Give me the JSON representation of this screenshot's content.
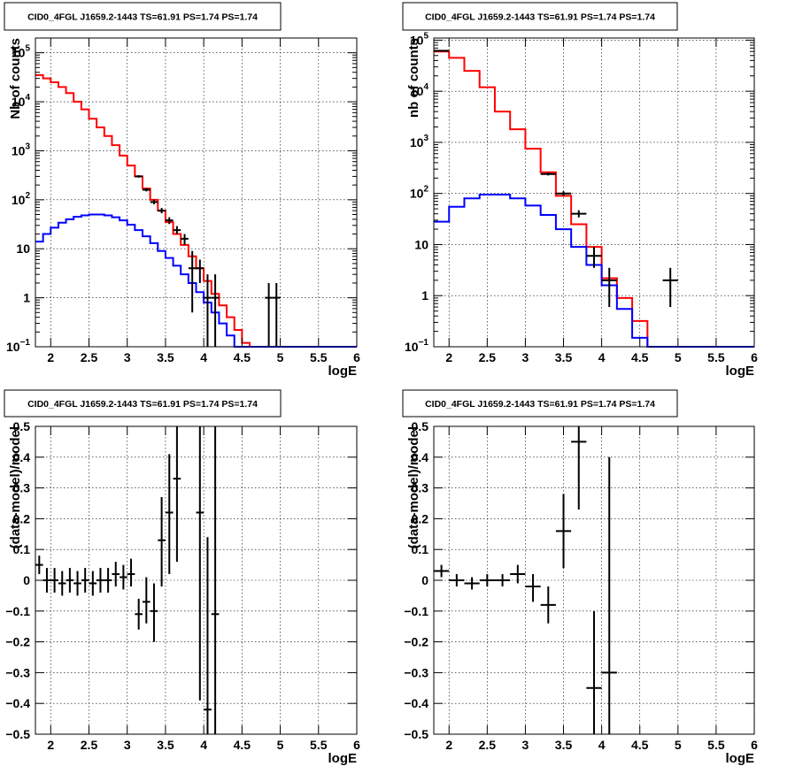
{
  "chart_data": [
    {
      "id": "p1",
      "type": "histogram",
      "title": "CID0_4FGL J1659.2-1443 TS=61.91 PS=1.74 PS=1.74",
      "xlabel": "logE",
      "ylabel": "Nb of counts",
      "xlim": [
        1.8,
        6.0
      ],
      "ylim": [
        0.1,
        200000
      ],
      "logy": true,
      "grid": true,
      "xticks": [
        2,
        2.5,
        3,
        3.5,
        4,
        4.5,
        5,
        5.5,
        6
      ],
      "yticks": [
        {
          "v": 0.1,
          "l": "10",
          "e": "−1"
        },
        {
          "v": 1,
          "l": "1",
          "e": ""
        },
        {
          "v": 10,
          "l": "10",
          "e": ""
        },
        {
          "v": 100,
          "l": "10",
          "e": "2"
        },
        {
          "v": 1000,
          "l": "10",
          "e": "3"
        },
        {
          "v": 10000,
          "l": "10",
          "e": "4"
        },
        {
          "v": 100000,
          "l": "10",
          "e": "5"
        }
      ],
      "series": [
        {
          "color": "#ff0000",
          "kind": "step",
          "edges": [
            1.8,
            1.9,
            2.0,
            2.1,
            2.2,
            2.3,
            2.4,
            2.5,
            2.6,
            2.7,
            2.8,
            2.9,
            3.0,
            3.1,
            3.2,
            3.3,
            3.4,
            3.5,
            3.6,
            3.7,
            3.8,
            3.9,
            4.0,
            4.1,
            4.2,
            4.3,
            4.4,
            4.5,
            4.6,
            4.7,
            4.8,
            4.9,
            5.0,
            5.1,
            5.2,
            5.3,
            5.4,
            5.5,
            5.6,
            5.7,
            5.8,
            5.9,
            6.0
          ],
          "values": [
            35000,
            30000,
            25000,
            20000,
            15000,
            10000,
            7000,
            4500,
            3000,
            2000,
            1300,
            800,
            500,
            300,
            170,
            100,
            60,
            35,
            20,
            12,
            7,
            4,
            2.2,
            1.2,
            0.7,
            0.4,
            0.22,
            0.12,
            0.1,
            0.1,
            0.1,
            0.1,
            0.1,
            0.1,
            0.1,
            0.1,
            0.1,
            0.1,
            0.1,
            0.1,
            0.1,
            0.1
          ]
        },
        {
          "color": "#0000ff",
          "kind": "step",
          "edges": [
            1.8,
            1.9,
            2.0,
            2.1,
            2.2,
            2.3,
            2.4,
            2.5,
            2.6,
            2.7,
            2.8,
            2.9,
            3.0,
            3.1,
            3.2,
            3.3,
            3.4,
            3.5,
            3.6,
            3.7,
            3.8,
            3.9,
            4.0,
            4.1,
            4.2,
            4.3,
            4.4,
            4.5,
            4.6,
            4.7,
            4.8,
            4.9,
            5.0,
            5.1,
            5.2,
            5.3,
            5.4,
            5.5,
            5.6,
            5.7,
            5.8,
            5.9,
            6.0
          ],
          "values": [
            14,
            20,
            27,
            34,
            40,
            45,
            48,
            50,
            50,
            48,
            44,
            38,
            31,
            24,
            18,
            13,
            9,
            6.5,
            4.5,
            3,
            2,
            1.3,
            0.8,
            0.5,
            0.3,
            0.17,
            0.1,
            0.1,
            0.1,
            0.1,
            0.1,
            0.1,
            0.1,
            0.1,
            0.1,
            0.1,
            0.1,
            0.1,
            0.1,
            0.1,
            0.1,
            0.1
          ]
        }
      ],
      "points": [
        {
          "x": 3.15,
          "y": 300,
          "lo": 283,
          "hi": 317,
          "xe": 0.05
        },
        {
          "x": 3.25,
          "y": 160,
          "lo": 148,
          "hi": 173,
          "xe": 0.05
        },
        {
          "x": 3.35,
          "y": 90,
          "lo": 81,
          "hi": 100,
          "xe": 0.05
        },
        {
          "x": 3.45,
          "y": 60,
          "lo": 53,
          "hi": 68,
          "xe": 0.05
        },
        {
          "x": 3.55,
          "y": 38,
          "lo": 32,
          "hi": 44,
          "xe": 0.05
        },
        {
          "x": 3.65,
          "y": 24,
          "lo": 20,
          "hi": 29,
          "xe": 0.05
        },
        {
          "x": 3.75,
          "y": 16,
          "lo": 12,
          "hi": 20,
          "xe": 0.05
        },
        {
          "x": 3.85,
          "y": 4,
          "lo": 0.5,
          "hi": 9,
          "xe": 0.05
        },
        {
          "x": 3.95,
          "y": 4,
          "lo": 2,
          "hi": 6,
          "xe": 0.05
        },
        {
          "x": 4.05,
          "y": 1,
          "lo": 0.1,
          "hi": 3,
          "xe": 0.05
        },
        {
          "x": 4.15,
          "y": 1,
          "lo": 0.1,
          "hi": 3,
          "xe": 0.05
        },
        {
          "x": 4.85,
          "y": 1,
          "lo": 0.1,
          "hi": 2,
          "xe": 0.05
        },
        {
          "x": 4.95,
          "y": 1,
          "lo": 0.1,
          "hi": 2,
          "xe": 0.05
        }
      ]
    },
    {
      "id": "p2",
      "type": "histogram",
      "title": "CID0_4FGL J1659.2-1443 TS=61.91 PS=1.74 PS=1.74",
      "xlabel": "logE",
      "ylabel": "nb of counts",
      "xlim": [
        1.8,
        6.0
      ],
      "ylim": [
        0.1,
        110000
      ],
      "logy": true,
      "grid": true,
      "xticks": [
        2,
        2.5,
        3,
        3.5,
        4,
        4.5,
        5,
        5.5,
        6
      ],
      "yticks": [
        {
          "v": 0.1,
          "l": "10",
          "e": "−1"
        },
        {
          "v": 1,
          "l": "1",
          "e": ""
        },
        {
          "v": 10,
          "l": "10",
          "e": ""
        },
        {
          "v": 100,
          "l": "10",
          "e": "2"
        },
        {
          "v": 1000,
          "l": "10",
          "e": "3"
        },
        {
          "v": 10000,
          "l": "10",
          "e": "4"
        },
        {
          "v": 100000,
          "l": "10",
          "e": "5"
        }
      ],
      "series": [
        {
          "color": "#ff0000",
          "kind": "step",
          "edges": [
            1.8,
            2.0,
            2.2,
            2.4,
            2.6,
            2.8,
            3.0,
            3.2,
            3.4,
            3.6,
            3.8,
            4.0,
            4.2,
            4.4,
            4.6,
            4.8,
            5.0,
            5.2,
            5.4,
            5.6,
            5.8,
            6.0
          ],
          "values": [
            60000,
            45000,
            25000,
            12000,
            4000,
            1800,
            750,
            260,
            90,
            25,
            9,
            2.2,
            0.9,
            0.32,
            0.1,
            0.1,
            0.1,
            0.1,
            0.1,
            0.1,
            0.1
          ]
        },
        {
          "color": "#0000ff",
          "kind": "step",
          "edges": [
            1.8,
            2.0,
            2.2,
            2.4,
            2.6,
            2.8,
            3.0,
            3.2,
            3.4,
            3.6,
            3.8,
            4.0,
            4.2,
            4.4,
            4.6,
            4.8,
            5.0,
            5.2,
            5.4,
            5.6,
            5.8,
            6.0
          ],
          "values": [
            28,
            55,
            80,
            95,
            95,
            80,
            58,
            38,
            20,
            9,
            4,
            1.6,
            0.55,
            0.15,
            0.1,
            0.1,
            0.1,
            0.1,
            0.1,
            0.1,
            0.1
          ]
        }
      ],
      "points": [
        {
          "x": 1.9,
          "y": 62000,
          "lo": 61700,
          "hi": 62300,
          "xe": 0.1
        },
        {
          "x": 3.3,
          "y": 240,
          "lo": 225,
          "hi": 256,
          "xe": 0.1
        },
        {
          "x": 3.5,
          "y": 100,
          "lo": 90,
          "hi": 110,
          "xe": 0.1
        },
        {
          "x": 3.7,
          "y": 40,
          "lo": 34,
          "hi": 47,
          "xe": 0.1
        },
        {
          "x": 3.9,
          "y": 6,
          "lo": 3.5,
          "hi": 9,
          "xe": 0.1
        },
        {
          "x": 4.1,
          "y": 2,
          "lo": 0.6,
          "hi": 3.5,
          "xe": 0.1
        },
        {
          "x": 4.9,
          "y": 2,
          "lo": 0.6,
          "hi": 3.5,
          "xe": 0.1
        }
      ]
    },
    {
      "id": "p3",
      "type": "scatter",
      "title": "CID0_4FGL J1659.2-1443 TS=61.91 PS=1.74 PS=1.74",
      "xlabel": "logE",
      "ylabel": "(data-model)/model",
      "xlim": [
        1.8,
        6.0
      ],
      "ylim": [
        -0.5,
        0.5
      ],
      "logy": false,
      "grid": true,
      "xticks": [
        2,
        2.5,
        3,
        3.5,
        4,
        4.5,
        5,
        5.5,
        6
      ],
      "yticks": [
        {
          "v": -0.5,
          "l": "−0.5"
        },
        {
          "v": -0.4,
          "l": "−0.4"
        },
        {
          "v": -0.3,
          "l": "−0.3"
        },
        {
          "v": -0.2,
          "l": "−0.2"
        },
        {
          "v": -0.1,
          "l": "−0.1"
        },
        {
          "v": 0,
          "l": "0"
        },
        {
          "v": 0.1,
          "l": "0.1"
        },
        {
          "v": 0.2,
          "l": "0.2"
        },
        {
          "v": 0.3,
          "l": "0.3"
        },
        {
          "v": 0.4,
          "l": "0.4"
        },
        {
          "v": 0.5,
          "l": "0.5"
        }
      ],
      "series": [],
      "points": [
        {
          "x": 1.85,
          "y": 0.05,
          "lo": 0.02,
          "hi": 0.08,
          "xe": 0.05
        },
        {
          "x": 1.95,
          "y": 0.0,
          "lo": -0.04,
          "hi": 0.04,
          "xe": 0.05
        },
        {
          "x": 2.05,
          "y": 0.0,
          "lo": -0.04,
          "hi": 0.04,
          "xe": 0.05
        },
        {
          "x": 2.15,
          "y": -0.01,
          "lo": -0.05,
          "hi": 0.03,
          "xe": 0.05
        },
        {
          "x": 2.25,
          "y": 0.0,
          "lo": -0.04,
          "hi": 0.04,
          "xe": 0.05
        },
        {
          "x": 2.35,
          "y": -0.01,
          "lo": -0.05,
          "hi": 0.03,
          "xe": 0.05
        },
        {
          "x": 2.45,
          "y": 0.0,
          "lo": -0.04,
          "hi": 0.04,
          "xe": 0.05
        },
        {
          "x": 2.55,
          "y": -0.01,
          "lo": -0.05,
          "hi": 0.03,
          "xe": 0.05
        },
        {
          "x": 2.65,
          "y": 0.0,
          "lo": -0.04,
          "hi": 0.04,
          "xe": 0.05
        },
        {
          "x": 2.75,
          "y": 0.0,
          "lo": -0.04,
          "hi": 0.04,
          "xe": 0.05
        },
        {
          "x": 2.85,
          "y": 0.02,
          "lo": -0.02,
          "hi": 0.06,
          "xe": 0.05
        },
        {
          "x": 2.95,
          "y": 0.01,
          "lo": -0.03,
          "hi": 0.05,
          "xe": 0.05
        },
        {
          "x": 3.05,
          "y": 0.02,
          "lo": -0.02,
          "hi": 0.07,
          "xe": 0.05
        },
        {
          "x": 3.15,
          "y": -0.11,
          "lo": -0.16,
          "hi": -0.06,
          "xe": 0.05
        },
        {
          "x": 3.25,
          "y": -0.07,
          "lo": -0.14,
          "hi": 0.01,
          "xe": 0.05
        },
        {
          "x": 3.35,
          "y": -0.1,
          "lo": -0.2,
          "hi": -0.01,
          "xe": 0.05
        },
        {
          "x": 3.45,
          "y": 0.13,
          "lo": -0.02,
          "hi": 0.27,
          "xe": 0.05
        },
        {
          "x": 3.55,
          "y": 0.22,
          "lo": 0.02,
          "hi": 0.41,
          "xe": 0.05
        },
        {
          "x": 3.65,
          "y": 0.33,
          "lo": 0.06,
          "hi": 0.6,
          "xe": 0.05
        },
        {
          "x": 3.95,
          "y": 0.22,
          "lo": -0.39,
          "hi": 0.83,
          "xe": 0.05
        },
        {
          "x": 4.05,
          "y": -0.42,
          "lo": -1.0,
          "hi": 0.14,
          "xe": 0.05
        },
        {
          "x": 4.15,
          "y": -0.11,
          "lo": -1.0,
          "hi": 0.8,
          "xe": 0.05
        }
      ]
    },
    {
      "id": "p4",
      "type": "scatter",
      "title": "CID0_4FGL J1659.2-1443 TS=61.91 PS=1.74 PS=1.74",
      "xlabel": "logE",
      "ylabel": "(data-model)/model",
      "xlim": [
        1.8,
        6.0
      ],
      "ylim": [
        -0.5,
        0.5
      ],
      "logy": false,
      "grid": true,
      "xticks": [
        2,
        2.5,
        3,
        3.5,
        4,
        4.5,
        5,
        5.5,
        6
      ],
      "yticks": [
        {
          "v": -0.5,
          "l": "−0.5"
        },
        {
          "v": -0.4,
          "l": "−0.4"
        },
        {
          "v": -0.3,
          "l": "−0.3"
        },
        {
          "v": -0.2,
          "l": "−0.2"
        },
        {
          "v": -0.1,
          "l": "−0.1"
        },
        {
          "v": 0,
          "l": "0"
        },
        {
          "v": 0.1,
          "l": "0.1"
        },
        {
          "v": 0.2,
          "l": "0.2"
        },
        {
          "v": 0.3,
          "l": "0.3"
        },
        {
          "v": 0.4,
          "l": "0.4"
        },
        {
          "v": 0.5,
          "l": "0.5"
        }
      ],
      "series": [],
      "points": [
        {
          "x": 1.9,
          "y": 0.03,
          "lo": 0.01,
          "hi": 0.05,
          "xe": 0.1
        },
        {
          "x": 2.1,
          "y": 0.0,
          "lo": -0.02,
          "hi": 0.02,
          "xe": 0.1
        },
        {
          "x": 2.3,
          "y": -0.01,
          "lo": -0.03,
          "hi": 0.01,
          "xe": 0.1
        },
        {
          "x": 2.5,
          "y": 0.0,
          "lo": -0.02,
          "hi": 0.02,
          "xe": 0.1
        },
        {
          "x": 2.7,
          "y": 0.0,
          "lo": -0.02,
          "hi": 0.02,
          "xe": 0.1
        },
        {
          "x": 2.9,
          "y": 0.02,
          "lo": -0.01,
          "hi": 0.05,
          "xe": 0.1
        },
        {
          "x": 3.1,
          "y": -0.02,
          "lo": -0.07,
          "hi": 0.02,
          "xe": 0.1
        },
        {
          "x": 3.3,
          "y": -0.08,
          "lo": -0.14,
          "hi": -0.02,
          "xe": 0.1
        },
        {
          "x": 3.5,
          "y": 0.16,
          "lo": 0.04,
          "hi": 0.28,
          "xe": 0.1
        },
        {
          "x": 3.7,
          "y": 0.45,
          "lo": 0.23,
          "hi": 0.68,
          "xe": 0.1
        },
        {
          "x": 3.9,
          "y": -0.35,
          "lo": -0.61,
          "hi": -0.1,
          "xe": 0.1
        },
        {
          "x": 4.1,
          "y": -0.3,
          "lo": -1.0,
          "hi": 0.4,
          "xe": 0.1
        }
      ]
    }
  ]
}
